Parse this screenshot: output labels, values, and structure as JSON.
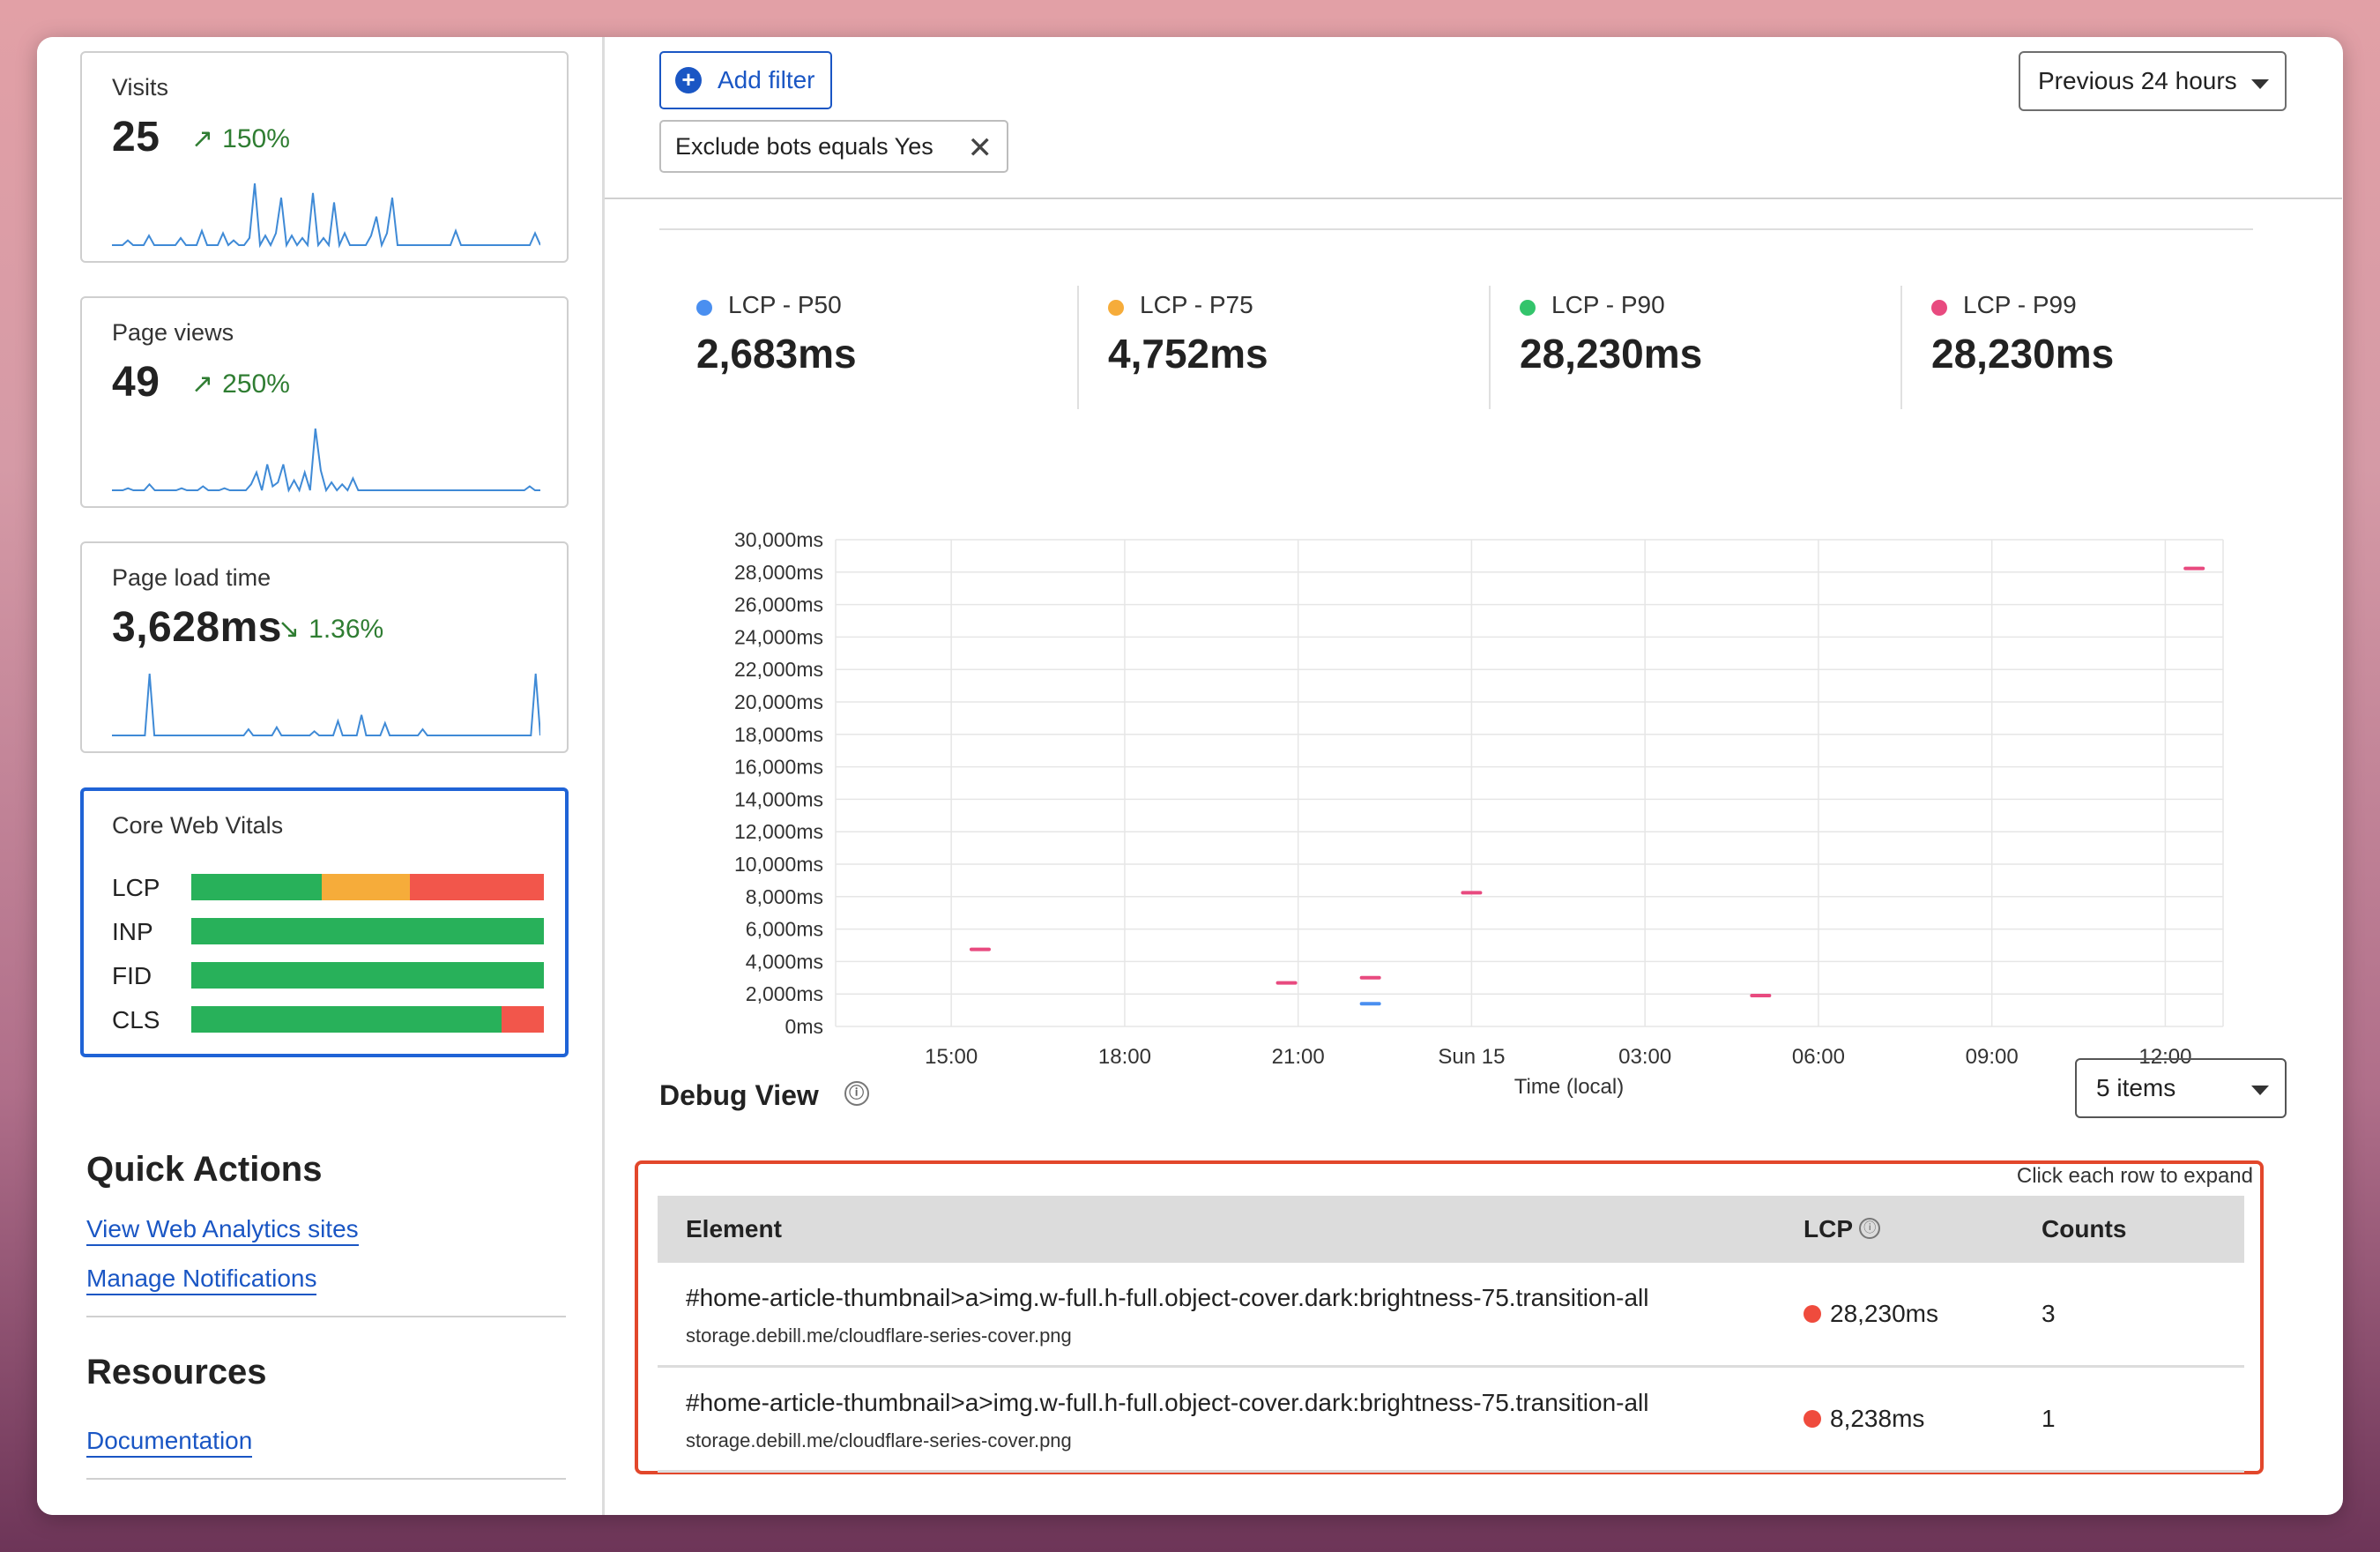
{
  "sidebar": {
    "cards": [
      {
        "label": "Visits",
        "value": "25",
        "delta_arrow": "↗",
        "delta": "150%",
        "spark": [
          0,
          0,
          0,
          2,
          0,
          0,
          0,
          4,
          0,
          0,
          0,
          0,
          0,
          3,
          0,
          0,
          0,
          6,
          0,
          0,
          0,
          5,
          0,
          2,
          0,
          0,
          3,
          26,
          0,
          4,
          0,
          5,
          20,
          0,
          4,
          0,
          3,
          0,
          22,
          0,
          3,
          0,
          18,
          0,
          5,
          0,
          0,
          0,
          0,
          4,
          12,
          0,
          5,
          20,
          0,
          0,
          0,
          0,
          0,
          0,
          0,
          0,
          0,
          0,
          0,
          6,
          0,
          0,
          0,
          0,
          0,
          0,
          0,
          0,
          0,
          0,
          0,
          0,
          0,
          0,
          5,
          0
        ]
      },
      {
        "label": "Page views",
        "value": "49",
        "delta_arrow": "↗",
        "delta": "250%",
        "spark": [
          0,
          0,
          0,
          1,
          0,
          0,
          0,
          3,
          0,
          0,
          0,
          0,
          0,
          1,
          0,
          0,
          0,
          2,
          0,
          0,
          0,
          1,
          0,
          0,
          0,
          0,
          3,
          9,
          0,
          13,
          2,
          4,
          13,
          0,
          5,
          0,
          9,
          0,
          31,
          10,
          0,
          4,
          0,
          3,
          0,
          6,
          0,
          0,
          0,
          0,
          0,
          0,
          0,
          0,
          0,
          0,
          0,
          0,
          0,
          0,
          0,
          0,
          0,
          0,
          0,
          0,
          0,
          0,
          0,
          0,
          0,
          0,
          0,
          0,
          0,
          0,
          0,
          0,
          2,
          0,
          0
        ]
      },
      {
        "label": "Page load time",
        "value": "3,628ms",
        "delta_arrow": "↘",
        "delta": "1.36%",
        "spark": [
          0,
          0,
          0,
          0,
          0,
          0,
          0,
          0,
          30,
          0,
          0,
          0,
          0,
          0,
          0,
          0,
          0,
          0,
          0,
          0,
          0,
          0,
          0,
          0,
          0,
          0,
          0,
          0,
          0,
          3,
          0,
          0,
          0,
          0,
          0,
          4,
          0,
          0,
          0,
          0,
          0,
          0,
          0,
          2,
          0,
          0,
          0,
          0,
          7,
          0,
          0,
          0,
          0,
          10,
          0,
          0,
          0,
          0,
          6,
          0,
          0,
          0,
          0,
          0,
          0,
          0,
          3,
          0,
          0,
          0,
          0,
          0,
          0,
          0,
          0,
          0,
          0,
          0,
          0,
          0,
          0,
          0,
          0,
          0,
          0,
          0,
          0,
          0,
          0,
          0,
          30,
          0
        ]
      }
    ],
    "cwv": {
      "title": "Core Web Vitals",
      "rows": [
        {
          "label": "LCP",
          "segments": [
            {
              "pct": 37,
              "color": "#28b15a"
            },
            {
              "pct": 25,
              "color": "#f6ac3a"
            },
            {
              "pct": 38,
              "color": "#f2564b"
            }
          ]
        },
        {
          "label": "INP",
          "segments": [
            {
              "pct": 100,
              "color": "#28b15a"
            }
          ]
        },
        {
          "label": "FID",
          "segments": [
            {
              "pct": 100,
              "color": "#28b15a"
            }
          ]
        },
        {
          "label": "CLS",
          "segments": [
            {
              "pct": 88,
              "color": "#28b15a"
            },
            {
              "pct": 12,
              "color": "#f2564b"
            }
          ]
        }
      ]
    },
    "quick_actions": {
      "title": "Quick Actions",
      "links": [
        "View Web Analytics sites",
        "Manage Notifications"
      ]
    },
    "resources": {
      "title": "Resources",
      "links": [
        "Documentation"
      ]
    }
  },
  "toolbar": {
    "add_filter": "Add filter",
    "filter_chip": "Exclude bots equals Yes",
    "time_range": "Previous 24 hours"
  },
  "metrics": [
    {
      "label": "LCP - P50",
      "value": "2,683ms",
      "color": "#4a8ff0"
    },
    {
      "label": "LCP - P75",
      "value": "4,752ms",
      "color": "#f6ac3a"
    },
    {
      "label": "LCP - P90",
      "value": "28,230ms",
      "color": "#33c46b"
    },
    {
      "label": "LCP - P99",
      "value": "28,230ms",
      "color": "#e84a7f"
    }
  ],
  "chart_data": {
    "type": "scatter",
    "xlabel": "Time (local)",
    "ylim": [
      0,
      30000
    ],
    "y_ticks": [
      "30,000ms",
      "28,000ms",
      "26,000ms",
      "24,000ms",
      "22,000ms",
      "20,000ms",
      "18,000ms",
      "16,000ms",
      "14,000ms",
      "12,000ms",
      "10,000ms",
      "8,000ms",
      "6,000ms",
      "4,000ms",
      "2,000ms",
      "0ms"
    ],
    "x_ticks": [
      "15:00",
      "18:00",
      "21:00",
      "Sun 15",
      "03:00",
      "06:00",
      "09:00",
      "12:00"
    ],
    "x_range_hours": [
      13,
      37
    ],
    "series": [
      {
        "color": "#e84a7f",
        "points": [
          {
            "x": 15.5,
            "y": 4752
          },
          {
            "x": 20.8,
            "y": 2683
          },
          {
            "x": 22.25,
            "y": 3000
          },
          {
            "x": 24.0,
            "y": 8238
          },
          {
            "x": 29.0,
            "y": 1900
          },
          {
            "x": 36.5,
            "y": 28230
          }
        ]
      },
      {
        "color": "#4a8ff0",
        "points": [
          {
            "x": 22.25,
            "y": 1400
          }
        ]
      }
    ]
  },
  "debug": {
    "title": "Debug View",
    "info_icon": "ⓘ",
    "items_select": "5 items",
    "hint": "Click each row to expand",
    "columns": {
      "element": "Element",
      "lcp": "LCP",
      "counts": "Counts"
    },
    "rows": [
      {
        "selector": "#home-article-thumbnail>a>img.w-full.h-full.object-cover.dark:brightness-75.transition-all",
        "url": "storage.debill.me/cloudflare-series-cover.png",
        "lcp": "28,230ms",
        "count": "3"
      },
      {
        "selector": "#home-article-thumbnail>a>img.w-full.h-full.object-cover.dark:brightness-75.transition-all",
        "url": "storage.debill.me/cloudflare-series-cover.png",
        "lcp": "8,238ms",
        "count": "1"
      }
    ]
  }
}
